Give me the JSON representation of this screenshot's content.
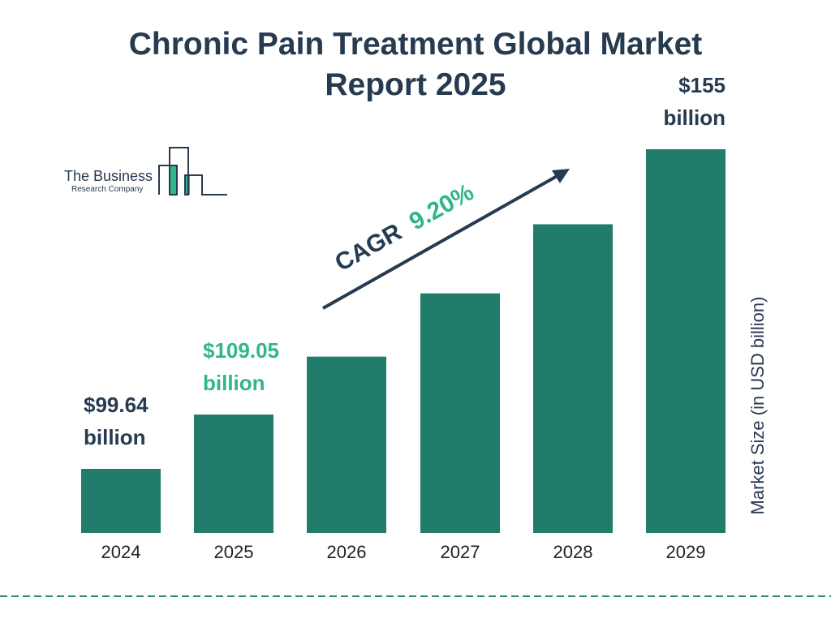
{
  "title": "Chronic Pain Treatment Global Market Report 2025",
  "logo": {
    "line1": "The Business",
    "line2": "Research Company"
  },
  "colors": {
    "bar": "#217c6b",
    "text": "#263a50",
    "highlight": "#2fb68a",
    "dash": "#2a8a7a"
  },
  "chart_data": {
    "type": "bar",
    "categories": [
      "2024",
      "2025",
      "2026",
      "2027",
      "2028",
      "2029"
    ],
    "values": [
      99.64,
      109.05,
      119.08,
      130.04,
      142.01,
      155
    ],
    "data_labels": [
      {
        "category": "2024",
        "value": "$99.64",
        "unit": "billion",
        "color": "#263a50"
      },
      {
        "category": "2025",
        "value": "$109.05",
        "unit": "billion",
        "color": "#2fb68a"
      },
      {
        "category": "2029",
        "value": "$155",
        "unit": "billion",
        "color": "#263a50"
      }
    ],
    "ylabel": "Market Size (in USD billion)",
    "annotation": {
      "label": "CAGR",
      "value": "9.20%"
    },
    "grid": false
  }
}
